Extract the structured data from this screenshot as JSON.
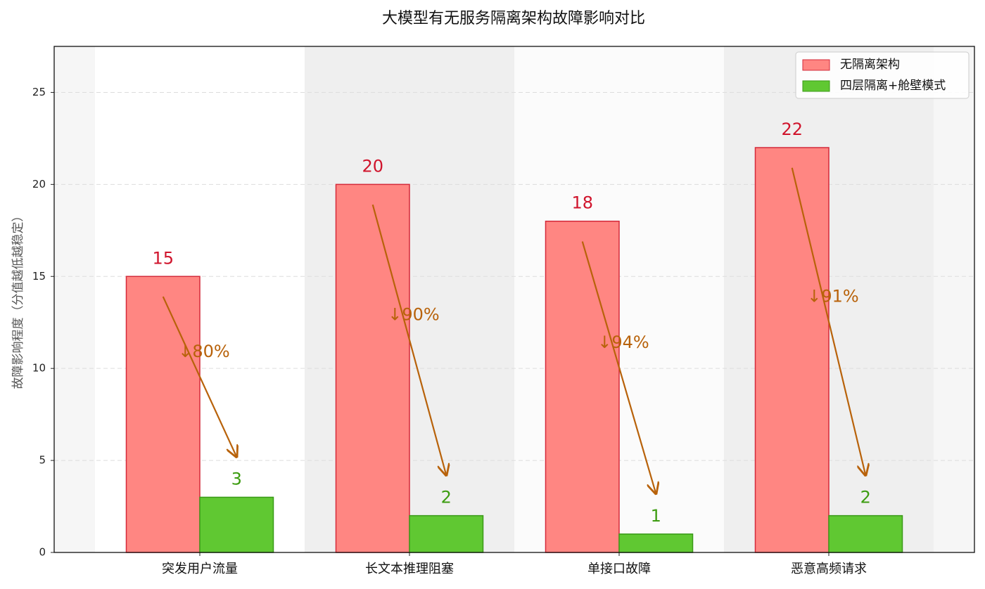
{
  "chart_data": {
    "type": "bar",
    "title": "大模型有无服务隔离架构故障影响对比",
    "y_label": "故障影响程度（分值越低越稳定）",
    "categories": [
      "突发用户流量",
      "长文本推理阻塞",
      "单接口故障",
      "恶意高频请求"
    ],
    "series": [
      {
        "name": "无隔离架构",
        "color": "#ff8682",
        "edge": "#d42a3a",
        "label_color": "#d0142c",
        "values": [
          15,
          20,
          18,
          22
        ]
      },
      {
        "name": "四层隔离+舱壁模式",
        "color": "#60c832",
        "edge": "#3a9a18",
        "label_color": "#3c9c10",
        "values": [
          3,
          2,
          1,
          2
        ]
      }
    ],
    "annotations": [
      "↓80%",
      "↓90%",
      "↓94%",
      "↓91%"
    ],
    "annotation_color": "#b8620a",
    "ylim": [
      0,
      27.5
    ],
    "yticks": [
      0,
      5,
      10,
      15,
      20,
      25
    ],
    "grid": true,
    "legend": "upper right"
  }
}
